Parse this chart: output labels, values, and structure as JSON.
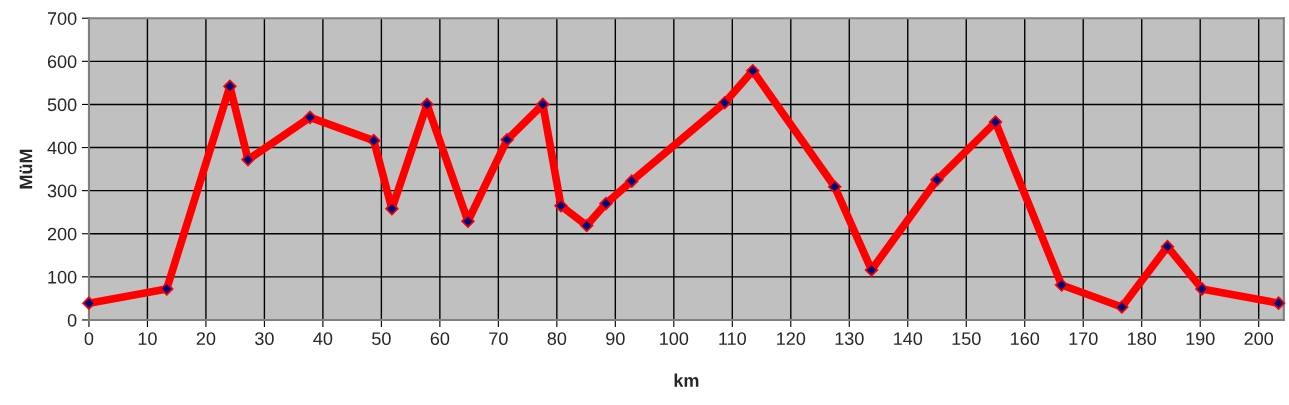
{
  "chart_data": {
    "type": "line",
    "xlabel": "km",
    "ylabel": "MüM",
    "x": [
      0,
      13.3,
      24.1,
      27.2,
      37.8,
      48.7,
      51.8,
      57.8,
      64.8,
      71.5,
      77.6,
      80.7,
      85.1,
      88.4,
      92.8,
      108.7,
      113.5,
      127.5,
      133.8,
      145,
      155,
      166.3,
      176.6,
      184.4,
      190.3,
      203.4
    ],
    "series": [
      {
        "color": "#ff0000",
        "values": [
          39,
          72,
          542,
          372,
          470,
          416,
          258,
          500,
          229,
          418,
          500,
          265,
          219,
          270,
          322,
          504,
          578,
          309,
          116,
          325,
          459,
          81,
          30,
          170,
          72,
          39
        ]
      }
    ],
    "xlim": [
      0,
      204.3
    ],
    "xticks": [
      0,
      10,
      20,
      30,
      40,
      50,
      60,
      70,
      80,
      90,
      100,
      110,
      120,
      130,
      140,
      150,
      160,
      170,
      180,
      190,
      200
    ],
    "ylim": [
      0,
      700
    ],
    "yticks": [
      0,
      100,
      200,
      300,
      400,
      500,
      600,
      700
    ],
    "grid": true,
    "marker": "diamond",
    "line_style": "solid"
  }
}
